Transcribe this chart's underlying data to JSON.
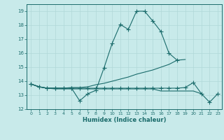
{
  "title": "",
  "xlabel": "Humidex (Indice chaleur)",
  "ylabel": "",
  "xlim": [
    -0.5,
    23.5
  ],
  "ylim": [
    12,
    19.5
  ],
  "xticks": [
    0,
    1,
    2,
    3,
    4,
    5,
    6,
    7,
    8,
    9,
    10,
    11,
    12,
    13,
    14,
    15,
    16,
    17,
    18,
    19,
    20,
    21,
    22,
    23
  ],
  "yticks": [
    12,
    13,
    14,
    15,
    16,
    17,
    18,
    19
  ],
  "bg_color": "#c8eaea",
  "line_color": "#1a6b6b",
  "grid_color": "#b0d8d8",
  "lines": [
    {
      "x": [
        0,
        1,
        2,
        3,
        4,
        5,
        6,
        7,
        8,
        9,
        10,
        11,
        12,
        13,
        14,
        15,
        16,
        17,
        18
      ],
      "y": [
        13.8,
        13.6,
        13.5,
        13.5,
        13.5,
        13.5,
        12.6,
        13.1,
        13.35,
        14.95,
        16.7,
        18.05,
        17.7,
        19.0,
        19.0,
        18.3,
        17.55,
        16.0,
        15.5
      ],
      "marker": true
    },
    {
      "x": [
        0,
        1,
        2,
        3,
        4,
        5,
        6,
        7,
        8,
        9,
        10,
        11,
        12,
        13,
        14,
        15,
        16,
        17,
        18,
        19
      ],
      "y": [
        13.8,
        13.6,
        13.5,
        13.5,
        13.5,
        13.55,
        13.55,
        13.6,
        13.75,
        13.85,
        14.0,
        14.15,
        14.3,
        14.5,
        14.65,
        14.8,
        15.0,
        15.2,
        15.5,
        15.55
      ],
      "marker": false
    },
    {
      "x": [
        0,
        1,
        2,
        3,
        4,
        5,
        6,
        7,
        8,
        9,
        10,
        11,
        12,
        13,
        14,
        15,
        16,
        17,
        18,
        19,
        20,
        21,
        22,
        23
      ],
      "y": [
        13.8,
        13.6,
        13.5,
        13.5,
        13.5,
        13.5,
        13.5,
        13.5,
        13.5,
        13.5,
        13.5,
        13.5,
        13.5,
        13.5,
        13.5,
        13.5,
        13.5,
        13.5,
        13.5,
        13.55,
        13.9,
        13.1,
        12.5,
        13.1
      ],
      "marker": true
    },
    {
      "x": [
        0,
        1,
        2,
        3,
        4,
        5,
        6,
        7,
        8,
        9,
        10,
        11,
        12,
        13,
        14,
        15,
        16,
        17,
        18,
        19,
        20,
        21
      ],
      "y": [
        13.8,
        13.6,
        13.5,
        13.45,
        13.45,
        13.45,
        13.45,
        13.45,
        13.45,
        13.45,
        13.45,
        13.45,
        13.45,
        13.45,
        13.45,
        13.45,
        13.3,
        13.3,
        13.3,
        13.3,
        13.3,
        13.1
      ],
      "marker": false
    }
  ],
  "figwidth": 3.2,
  "figheight": 2.0,
  "dpi": 100
}
